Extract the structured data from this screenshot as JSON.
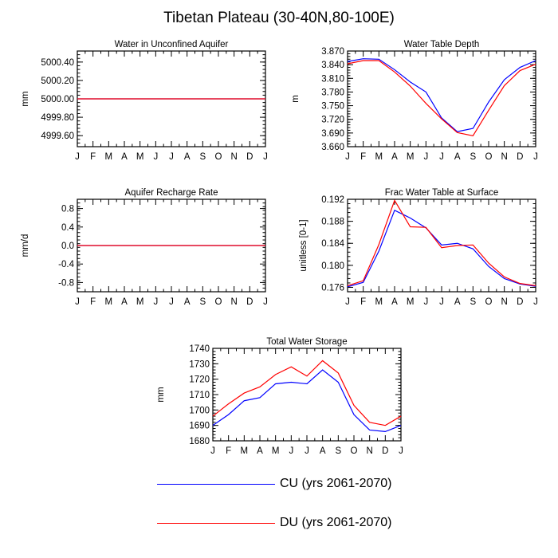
{
  "title": "Tibetan Plateau (30-40N,80-100E)",
  "colors": {
    "cu": "#0000ff",
    "du": "#ff0000",
    "axis": "#000000"
  },
  "legend": [
    {
      "label": "CU (yrs 2061-2070)",
      "color": "#0000ff"
    },
    {
      "label": "DU (yrs 2061-2070)",
      "color": "#ff0000"
    }
  ],
  "chart_data": [
    {
      "id": "unconfined",
      "type": "line",
      "title": "Water in Unconfined Aquifer",
      "ylabel": "mm",
      "categories": [
        "J",
        "F",
        "M",
        "A",
        "M",
        "J",
        "J",
        "A",
        "S",
        "O",
        "N",
        "D",
        "J"
      ],
      "ylim": [
        4999.48,
        5000.52
      ],
      "yticks": [
        4999.6,
        4999.8,
        5000.0,
        5000.2,
        5000.4
      ],
      "ytick_labels": [
        "4999.60",
        "4999.80",
        "5000.00",
        "5000.20",
        "5000.40"
      ],
      "yminor": 0.04,
      "series": [
        {
          "name": "CU (yrs 2061-2070)",
          "color": "#0000ff",
          "values": [
            5000,
            5000,
            5000,
            5000,
            5000,
            5000,
            5000,
            5000,
            5000,
            5000,
            5000,
            5000,
            5000
          ]
        },
        {
          "name": "DU (yrs 2061-2070)",
          "color": "#ff0000",
          "values": [
            5000,
            5000,
            5000,
            5000,
            5000,
            5000,
            5000,
            5000,
            5000,
            5000,
            5000,
            5000,
            5000
          ]
        }
      ]
    },
    {
      "id": "wtd",
      "type": "line",
      "title": "Water Table Depth",
      "ylabel": "m",
      "categories": [
        "J",
        "F",
        "M",
        "A",
        "M",
        "J",
        "J",
        "A",
        "S",
        "O",
        "N",
        "D",
        "J"
      ],
      "ylim": [
        3.66,
        3.87
      ],
      "yticks": [
        3.66,
        3.69,
        3.72,
        3.75,
        3.78,
        3.81,
        3.84,
        3.87
      ],
      "ytick_labels": [
        "3.660",
        "3.690",
        "3.720",
        "3.750",
        "3.780",
        "3.810",
        "3.840",
        "3.870"
      ],
      "yminor": 0.006,
      "series": [
        {
          "name": "CU (yrs 2061-2070)",
          "color": "#0000ff",
          "values": [
            3.847,
            3.853,
            3.852,
            3.829,
            3.802,
            3.78,
            3.723,
            3.693,
            3.7,
            3.758,
            3.807,
            3.834,
            3.849
          ]
        },
        {
          "name": "DU (yrs 2061-2070)",
          "color": "#ff0000",
          "values": [
            3.842,
            3.849,
            3.849,
            3.824,
            3.793,
            3.755,
            3.721,
            3.691,
            3.684,
            3.74,
            3.794,
            3.827,
            3.841
          ]
        }
      ]
    },
    {
      "id": "recharge",
      "type": "line",
      "title": "Aquifer Recharge Rate",
      "ylabel": "mm/d",
      "categories": [
        "J",
        "F",
        "M",
        "A",
        "M",
        "J",
        "J",
        "A",
        "S",
        "O",
        "N",
        "D",
        "J"
      ],
      "ylim": [
        -1.0,
        1.0
      ],
      "yticks": [
        -0.8,
        -0.4,
        0.0,
        0.4,
        0.8
      ],
      "ytick_labels": [
        "-0.8",
        "-0.4",
        "0.0",
        "0.4",
        "0.8"
      ],
      "yminor": 0.08,
      "series": [
        {
          "name": "CU (yrs 2061-2070)",
          "color": "#0000ff",
          "values": [
            0,
            0,
            0,
            0,
            0,
            0,
            0,
            0,
            0,
            0,
            0,
            0,
            0
          ]
        },
        {
          "name": "DU (yrs 2061-2070)",
          "color": "#ff0000",
          "values": [
            0,
            0,
            0,
            0,
            0,
            0,
            0,
            0,
            0,
            0,
            0,
            0,
            0
          ]
        }
      ]
    },
    {
      "id": "frac",
      "type": "line",
      "title": "Frac Water Table at Surface",
      "ylabel": "unitless [0-1]",
      "categories": [
        "J",
        "F",
        "M",
        "A",
        "M",
        "J",
        "J",
        "A",
        "S",
        "O",
        "N",
        "D",
        "J"
      ],
      "ylim": [
        0.1752,
        0.192
      ],
      "yticks": [
        0.176,
        0.18,
        0.184,
        0.188,
        0.192
      ],
      "ytick_labels": [
        "0.176",
        "0.180",
        "0.184",
        "0.188",
        "0.192"
      ],
      "yminor": 0.0008,
      "series": [
        {
          "name": "CU (yrs 2061-2070)",
          "color": "#0000ff",
          "values": [
            0.1761,
            0.1769,
            0.1826,
            0.19,
            0.1886,
            0.1868,
            0.1837,
            0.184,
            0.183,
            0.1798,
            0.1776,
            0.1766,
            0.1762
          ]
        },
        {
          "name": "DU (yrs 2061-2070)",
          "color": "#ff0000",
          "values": [
            0.1763,
            0.1772,
            0.1838,
            0.1918,
            0.187,
            0.1869,
            0.1832,
            0.1836,
            0.1837,
            0.1804,
            0.1779,
            0.1767,
            0.1763
          ]
        }
      ]
    },
    {
      "id": "storage",
      "type": "line",
      "title": "Total Water Storage",
      "ylabel": "mm",
      "categories": [
        "J",
        "F",
        "M",
        "A",
        "M",
        "J",
        "J",
        "A",
        "S",
        "O",
        "N",
        "D",
        "J"
      ],
      "ylim": [
        1680,
        1740
      ],
      "yticks": [
        1680,
        1690,
        1700,
        1710,
        1720,
        1730,
        1740
      ],
      "ytick_labels": [
        "1680",
        "1690",
        "1700",
        "1710",
        "1720",
        "1730",
        "1740"
      ],
      "yminor": 2,
      "series": [
        {
          "name": "CU (yrs 2061-2070)",
          "color": "#0000ff",
          "values": [
            1690,
            1697,
            1706,
            1708,
            1717,
            1718,
            1717,
            1726,
            1718,
            1697,
            1687,
            1686,
            1690
          ]
        },
        {
          "name": "DU (yrs 2061-2070)",
          "color": "#ff0000",
          "values": [
            1696,
            1704,
            1711,
            1715,
            1723,
            1728,
            1722,
            1732,
            1724,
            1703,
            1692,
            1690,
            1696
          ]
        }
      ]
    }
  ]
}
